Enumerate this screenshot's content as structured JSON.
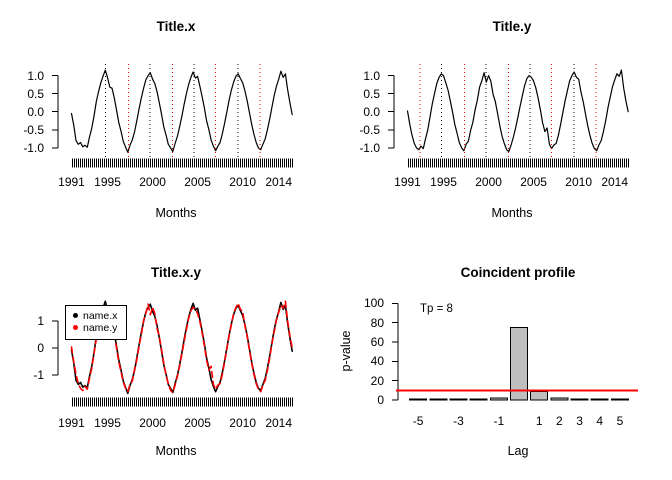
{
  "figure": {
    "background": "#FFFFFF",
    "text_color": "#000000"
  },
  "chart_data": [
    {
      "type": "line",
      "title": "Title.x",
      "xlabel": "Months",
      "x_start": 1991.0,
      "x_step_years": 0.25,
      "xlim": [
        1989.5,
        2015.7
      ],
      "ylim": [
        -1.28,
        1.32
      ],
      "xticks": [
        1991,
        1995,
        2000,
        2005,
        2010,
        2014
      ],
      "yticks": [
        {
          "v": 1.0,
          "label": "1.0"
        },
        {
          "v": 0.5,
          "label": "0.5"
        },
        {
          "v": 0.0,
          "label": "0.0"
        },
        {
          "v": -0.5,
          "label": "-0.5"
        },
        {
          "v": -1.0,
          "label": "-1.0"
        }
      ],
      "rug": {
        "from": 1991.0,
        "to": 2015.5
      },
      "line_color": "#000000",
      "peak_lines": {
        "color": "#000000",
        "style": "dotted",
        "x": [
          1994.8,
          1999.7,
          2004.6,
          2009.5
        ]
      },
      "trough_lines": {
        "color": "#FF0000",
        "style": "dotted",
        "x": [
          1997.3,
          2002.2,
          2007.0,
          2011.9
        ]
      },
      "values": [
        -0.05,
        -0.38,
        -0.8,
        -0.9,
        -0.85,
        -0.97,
        -0.93,
        -0.98,
        -0.7,
        -0.45,
        -0.12,
        0.28,
        0.55,
        0.8,
        0.98,
        1.15,
        0.95,
        0.68,
        0.65,
        0.38,
        0.05,
        -0.3,
        -0.55,
        -0.82,
        -0.98,
        -1.12,
        -0.92,
        -0.78,
        -0.55,
        -0.25,
        0.08,
        0.38,
        0.65,
        0.88,
        1.0,
        1.08,
        0.9,
        0.78,
        0.55,
        0.25,
        -0.08,
        -0.42,
        -0.65,
        -0.9,
        -1.0,
        -1.1,
        -0.88,
        -0.68,
        -0.42,
        -0.12,
        0.2,
        0.5,
        0.75,
        0.95,
        1.1,
        0.93,
        0.98,
        0.7,
        0.42,
        0.1,
        -0.25,
        -0.5,
        -0.78,
        -0.95,
        -1.08,
        -0.95,
        -0.85,
        -0.6,
        -0.32,
        0.0,
        0.32,
        0.6,
        0.82,
        0.98,
        1.05,
        0.92,
        0.8,
        0.58,
        0.3,
        -0.02,
        -0.35,
        -0.62,
        -0.85,
        -1.0,
        -1.05,
        -0.9,
        -0.75,
        -0.5,
        -0.2,
        0.12,
        0.45,
        0.7,
        0.9,
        1.12,
        0.95,
        1.05,
        0.6,
        0.25,
        -0.08
      ]
    },
    {
      "type": "line",
      "title": "Title.y",
      "xlabel": "Months",
      "x_start": 1991.0,
      "x_step_years": 0.25,
      "xlim": [
        1989.5,
        2015.7
      ],
      "ylim": [
        -1.28,
        1.32
      ],
      "xticks": [
        1991,
        1995,
        2000,
        2005,
        2010,
        2014
      ],
      "yticks": [
        {
          "v": 1.0,
          "label": "1.0"
        },
        {
          "v": 0.5,
          "label": "0.5"
        },
        {
          "v": 0.0,
          "label": "0.0"
        },
        {
          "v": -0.5,
          "label": "-0.5"
        },
        {
          "v": -1.0,
          "label": "-1.0"
        }
      ],
      "rug": {
        "from": 1991.0,
        "to": 2015.5
      },
      "line_color": "#000000",
      "peak_lines": {
        "color": "#000000",
        "style": "dotted",
        "x": [
          1994.8,
          1999.7,
          2004.6,
          2009.5
        ]
      },
      "trough_lines": {
        "color": "#FF0000",
        "style": "dotted",
        "x": [
          1992.4,
          1997.3,
          2002.2,
          2007.0,
          2011.9
        ]
      },
      "values": [
        0.02,
        -0.35,
        -0.65,
        -0.88,
        -1.0,
        -1.05,
        -0.95,
        -1.02,
        -0.75,
        -0.5,
        -0.15,
        0.22,
        0.5,
        0.78,
        0.95,
        1.05,
        1.0,
        0.8,
        0.6,
        0.3,
        0.0,
        -0.35,
        -0.6,
        -0.85,
        -1.0,
        -1.08,
        -0.9,
        -0.82,
        -0.52,
        -0.3,
        0.05,
        0.32,
        0.68,
        0.85,
        1.08,
        0.82,
        1.0,
        0.85,
        0.48,
        0.28,
        -0.05,
        -0.38,
        -0.68,
        -0.88,
        -1.05,
        -1.1,
        -0.92,
        -0.7,
        -0.45,
        -0.15,
        0.15,
        0.45,
        0.72,
        0.92,
        1.0,
        0.95,
        0.85,
        0.65,
        0.38,
        0.05,
        -0.3,
        -0.55,
        -0.45,
        -0.9,
        -1.02,
        -0.92,
        -0.88,
        -0.65,
        -0.35,
        -0.02,
        0.3,
        0.58,
        0.85,
        1.0,
        1.1,
        0.95,
        0.9,
        0.55,
        0.28,
        -0.05,
        -0.38,
        -0.65,
        -0.88,
        -1.02,
        -1.08,
        -0.92,
        -0.8,
        -0.55,
        -0.25,
        0.1,
        0.4,
        0.68,
        0.88,
        1.05,
        0.98,
        1.15,
        0.65,
        0.3,
        0.0
      ]
    },
    {
      "type": "line",
      "title": "Title.x.y",
      "xlabel": "Months",
      "x_start": 1991.0,
      "x_step_years": 0.25,
      "xlim": [
        1989.5,
        2015.7
      ],
      "ylim": [
        -1.78,
        1.7
      ],
      "xticks": [
        1991,
        1995,
        2000,
        2005,
        2010,
        2014
      ],
      "yticks": [
        {
          "v": 1,
          "label": "1"
        },
        {
          "v": 0,
          "label": "0"
        },
        {
          "v": -1,
          "label": "-1"
        }
      ],
      "rug": {
        "from": 1991.0,
        "to": 2015.5
      },
      "series": [
        {
          "name": "name.x",
          "color": "#000000",
          "line_style": "solid",
          "values_from_chart": 0,
          "scale": 1.5
        },
        {
          "name": "name.y",
          "color": "#FF0000",
          "line_style": "dashed",
          "values_from_chart": 1,
          "scale": 1.5
        }
      ],
      "legend": {
        "position": "top-left",
        "marker": "dot"
      }
    },
    {
      "type": "bar",
      "title": "Coincident profile",
      "xlabel": "Lag",
      "ylabel": "p-value",
      "annotation": "Tp = 8",
      "categories": [
        -5,
        -4,
        -3,
        -2,
        -1,
        0,
        1,
        2,
        3,
        4,
        5
      ],
      "values": [
        1,
        1,
        1,
        1,
        2,
        75,
        9,
        2,
        1,
        1,
        1
      ],
      "shown_xtick_positions": [
        -5,
        -3,
        -1,
        1,
        2,
        3,
        4,
        5
      ],
      "shown_xtick_labels": [
        "-5",
        "-3",
        "-1",
        "1",
        "2",
        "3",
        "4",
        "5"
      ],
      "yticks": [
        {
          "v": 0,
          "label": "0"
        },
        {
          "v": 20,
          "label": "20"
        },
        {
          "v": 40,
          "label": "40"
        },
        {
          "v": 60,
          "label": "60"
        },
        {
          "v": 80,
          "label": "80"
        },
        {
          "v": 100,
          "label": "100"
        }
      ],
      "ylim": [
        0,
        102.4
      ],
      "bar_fill": "#BEBEBE",
      "bar_stroke": "#000000",
      "threshold_line": {
        "y": 10,
        "color": "#FF0000",
        "width": 2
      }
    }
  ]
}
